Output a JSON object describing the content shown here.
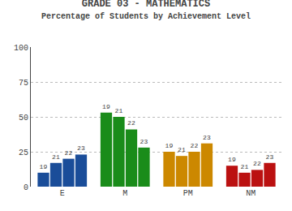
{
  "chart_data": {
    "type": "bar",
    "title": "GRADE 03 - MATHEMATICS",
    "subtitle": "Percentage of Students by Achievement Level",
    "categories": [
      "E",
      "M",
      "PM",
      "NM"
    ],
    "colors": [
      "#1a4d99",
      "#1a8c1a",
      "#cc8800",
      "#bb1111"
    ],
    "series": [
      {
        "name": "19",
        "values": [
          10,
          53,
          25,
          15
        ]
      },
      {
        "name": "21",
        "values": [
          17,
          50,
          22,
          10
        ]
      },
      {
        "name": "22",
        "values": [
          20,
          41,
          25,
          12
        ]
      },
      {
        "name": "23",
        "values": [
          23,
          28,
          31,
          17
        ]
      }
    ],
    "ylim": [
      0,
      100
    ],
    "yticks": [
      0,
      25,
      50,
      75,
      100
    ],
    "grid": true
  }
}
